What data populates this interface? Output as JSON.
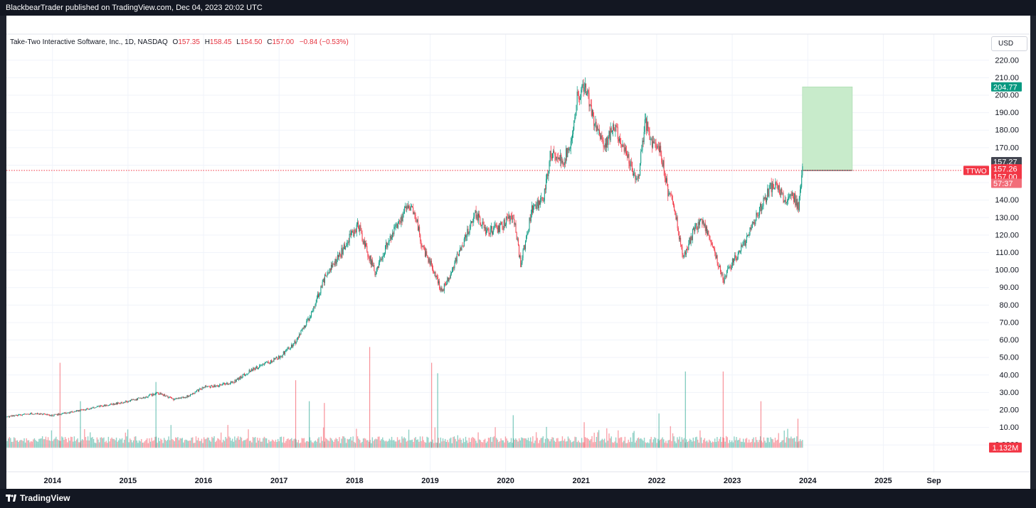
{
  "header": {
    "publish_text": "BlackbearTrader published on TradingView.com, Dec 04, 2023 20:02 UTC"
  },
  "footer": {
    "brand": "TradingView"
  },
  "currency_button": "USD",
  "symbol_info": {
    "name": "Take-Two Interactive Software, Inc., 1D, NASDAQ",
    "open_label": "O",
    "open": "157.35",
    "high_label": "H",
    "high": "158.45",
    "low_label": "L",
    "low": "154.50",
    "close_label": "C",
    "close": "157.00",
    "change": "−0.84 (−0.53%)"
  },
  "chart_data": {
    "type": "candlestick",
    "ticker": "TTWO",
    "y_ticks": [
      0,
      10,
      20,
      30,
      40,
      50,
      60,
      70,
      80,
      90,
      100,
      110,
      120,
      130,
      140,
      150,
      160,
      170,
      180,
      190,
      200,
      210,
      220
    ],
    "y_tick_labels": [
      "0.0000",
      "10.00",
      "20.00",
      "30.00",
      "40.00",
      "50.00",
      "60.00",
      "70.00",
      "80.00",
      "90.00",
      "100.00",
      "110.00",
      "120.00",
      "130.00",
      "140.00",
      "150.00",
      "160.00",
      "170.00",
      "180.00",
      "190.00",
      "200.00",
      "210.00",
      "220.00"
    ],
    "ylim": [
      -6,
      226
    ],
    "x_ticks": [
      {
        "label": "2014",
        "t": 2014.0
      },
      {
        "label": "2015",
        "t": 2015.0
      },
      {
        "label": "2016",
        "t": 2016.0
      },
      {
        "label": "2017",
        "t": 2017.0
      },
      {
        "label": "2018",
        "t": 2018.0
      },
      {
        "label": "2019",
        "t": 2019.0
      },
      {
        "label": "2020",
        "t": 2020.0
      },
      {
        "label": "2021",
        "t": 2021.0
      },
      {
        "label": "2022",
        "t": 2022.0
      },
      {
        "label": "2023",
        "t": 2023.0
      },
      {
        "label": "2024",
        "t": 2024.0
      },
      {
        "label": "2025",
        "t": 2025.0
      },
      {
        "label": "Sep",
        "t": 2025.67
      }
    ],
    "xlim": [
      2013.39,
      2026.4
    ],
    "price_path": [
      [
        2013.4,
        16
      ],
      [
        2013.7,
        18
      ],
      [
        2014.0,
        17
      ],
      [
        2014.3,
        19
      ],
      [
        2014.6,
        22
      ],
      [
        2014.9,
        24
      ],
      [
        2015.2,
        27
      ],
      [
        2015.4,
        30
      ],
      [
        2015.6,
        26
      ],
      [
        2015.8,
        28
      ],
      [
        2016.0,
        33
      ],
      [
        2016.2,
        34
      ],
      [
        2016.4,
        36
      ],
      [
        2016.6,
        42
      ],
      [
        2016.8,
        46
      ],
      [
        2017.0,
        50
      ],
      [
        2017.2,
        58
      ],
      [
        2017.4,
        72
      ],
      [
        2017.6,
        95
      ],
      [
        2017.8,
        108
      ],
      [
        2017.92,
        118
      ],
      [
        2018.05,
        126
      ],
      [
        2018.15,
        112
      ],
      [
        2018.28,
        98
      ],
      [
        2018.4,
        112
      ],
      [
        2018.55,
        125
      ],
      [
        2018.7,
        136
      ],
      [
        2018.8,
        132
      ],
      [
        2018.9,
        112
      ],
      [
        2019.05,
        100
      ],
      [
        2019.15,
        88
      ],
      [
        2019.25,
        96
      ],
      [
        2019.4,
        112
      ],
      [
        2019.6,
        132
      ],
      [
        2019.75,
        122
      ],
      [
        2019.95,
        125
      ],
      [
        2020.1,
        132
      ],
      [
        2020.2,
        103
      ],
      [
        2020.35,
        135
      ],
      [
        2020.5,
        140
      ],
      [
        2020.6,
        168
      ],
      [
        2020.75,
        162
      ],
      [
        2020.85,
        170
      ],
      [
        2020.95,
        200
      ],
      [
        2021.05,
        205
      ],
      [
        2021.15,
        188
      ],
      [
        2021.3,
        172
      ],
      [
        2021.45,
        182
      ],
      [
        2021.6,
        165
      ],
      [
        2021.75,
        150
      ],
      [
        2021.85,
        185
      ],
      [
        2021.95,
        172
      ],
      [
        2022.05,
        168
      ],
      [
        2022.15,
        145
      ],
      [
        2022.25,
        132
      ],
      [
        2022.35,
        106
      ],
      [
        2022.5,
        124
      ],
      [
        2022.62,
        128
      ],
      [
        2022.75,
        112
      ],
      [
        2022.88,
        94
      ],
      [
        2023.0,
        104
      ],
      [
        2023.12,
        112
      ],
      [
        2023.28,
        126
      ],
      [
        2023.4,
        138
      ],
      [
        2023.55,
        150
      ],
      [
        2023.7,
        140
      ],
      [
        2023.8,
        143
      ],
      [
        2023.88,
        136
      ],
      [
        2023.93,
        157
      ]
    ],
    "volume_spikes": [
      {
        "t": 2014.1,
        "value": 47
      },
      {
        "t": 2014.37,
        "value": 25
      },
      {
        "t": 2015.37,
        "value": 36
      },
      {
        "t": 2017.22,
        "value": 37
      },
      {
        "t": 2017.4,
        "value": 25
      },
      {
        "t": 2017.6,
        "value": 24
      },
      {
        "t": 2018.2,
        "value": 56
      },
      {
        "t": 2019.02,
        "value": 47
      },
      {
        "t": 2019.1,
        "value": 41
      },
      {
        "t": 2020.1,
        "value": 17
      },
      {
        "t": 2021.04,
        "value": 13
      },
      {
        "t": 2022.03,
        "value": 18
      },
      {
        "t": 2022.38,
        "value": 42
      },
      {
        "t": 2022.88,
        "value": 42
      },
      {
        "t": 2023.38,
        "value": 25
      },
      {
        "t": 2023.87,
        "value": 15
      }
    ],
    "target_box": {
      "t_start": 2023.93,
      "t_end": 2024.59,
      "price_low": 157.0,
      "price_high": 204.77
    },
    "price_labels": [
      {
        "text": "204.77",
        "price": 204.77,
        "color": "#089981"
      },
      {
        "text": "157.27",
        "price": 162.0,
        "color": "#434651"
      },
      {
        "text": "157.26",
        "price": 157.9,
        "color": "#f23645"
      },
      {
        "text": "157.00",
        "price": 153.5,
        "color": "#f23645"
      },
      {
        "text": "57:37",
        "price": 149.6,
        "color": "#f26d79"
      }
    ],
    "last_price": 157.0,
    "ticker_tag": "TTWO",
    "volume_label": "1.132M",
    "up_color": "#089981",
    "down_color": "#f23645",
    "target_fill": "#c8ebcb"
  }
}
